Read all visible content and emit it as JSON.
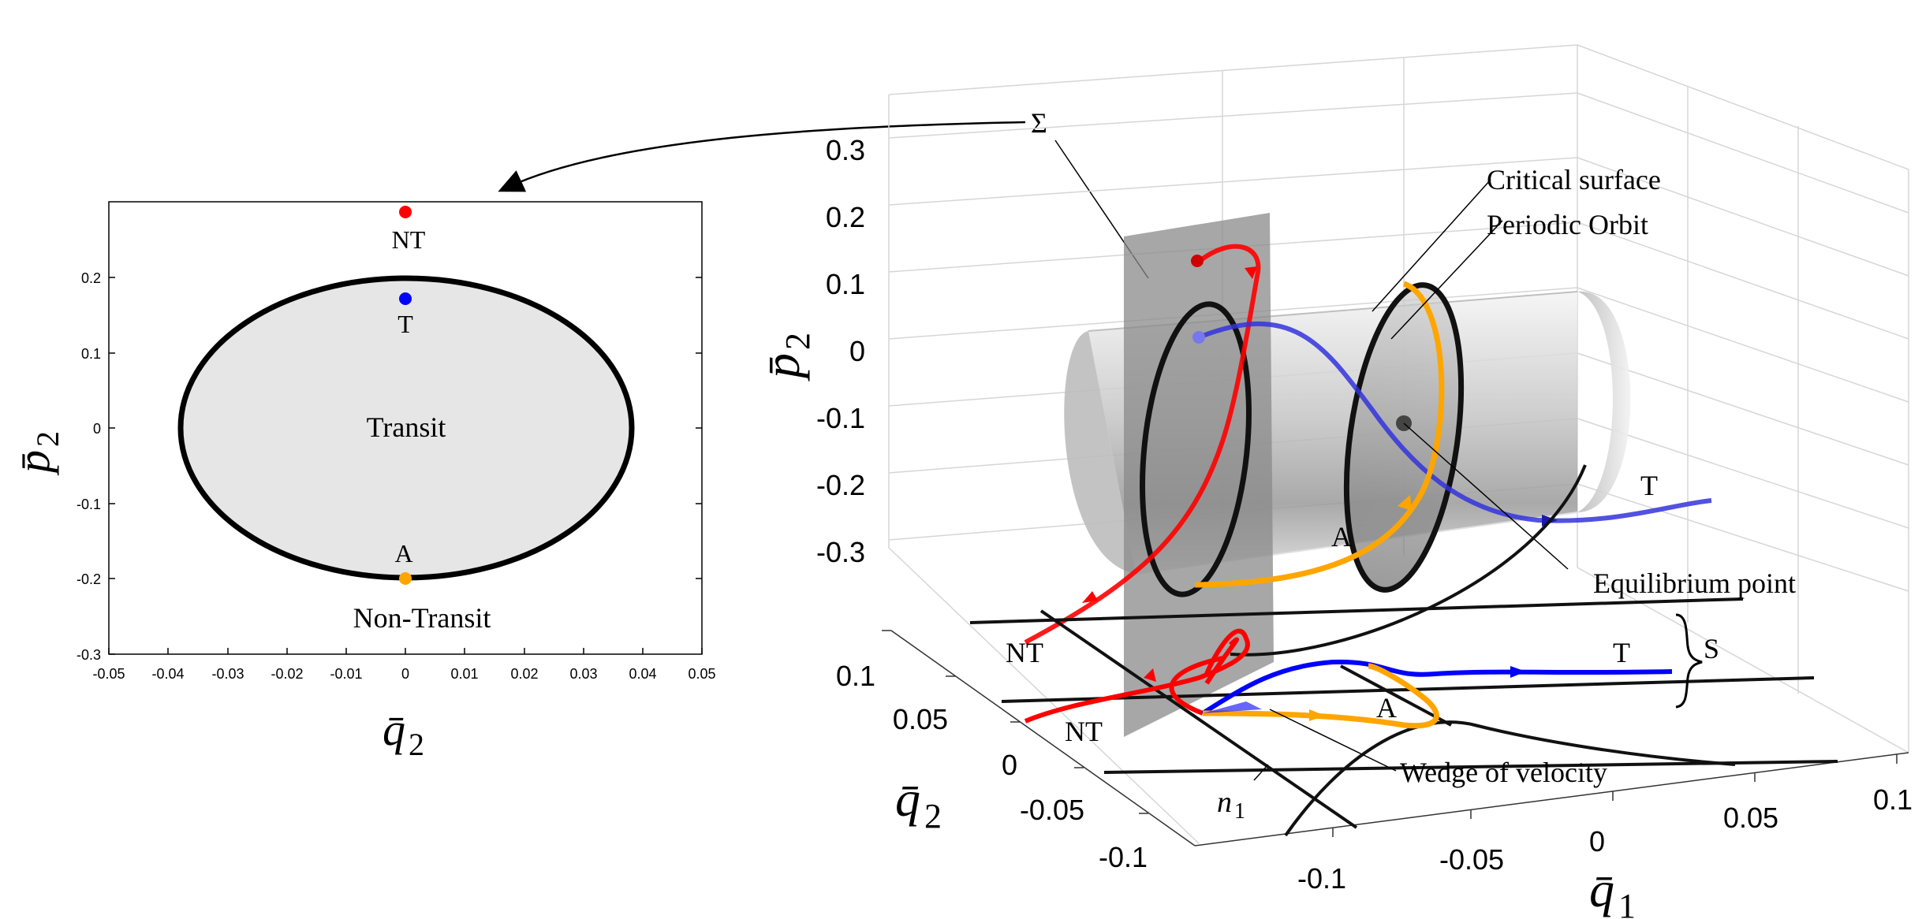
{
  "left_plot": {
    "x_ticks": [
      "-0.05",
      "-0.04",
      "-0.03",
      "-0.02",
      "-0.01",
      "0",
      "0.01",
      "0.02",
      "0.03",
      "0.05"
    ],
    "x_tick_004": "0.04",
    "y_ticks": [
      "0.2",
      "0.1",
      "0",
      "-0.1",
      "-0.2",
      "-0.3"
    ],
    "xlabel": "q̄",
    "xlabel_sub": "2",
    "ylabel": "p̄",
    "ylabel_sub": "2",
    "region_inside": "Transit",
    "region_outside": "Non-Transit",
    "point_nt": "NT",
    "point_t": "T",
    "point_a": "A",
    "colors": {
      "nt": "#ff0000",
      "t": "#0000ff",
      "a": "#ffa500",
      "fill": "#e6e6e6"
    }
  },
  "right_plot": {
    "sigma_label": "Σ",
    "p2_ticks": [
      "0.3",
      "0.2",
      "0.1",
      "0",
      "-0.1",
      "-0.2",
      "-0.3"
    ],
    "q2_ticks": [
      "0.1",
      "0.05",
      "0",
      "-0.05",
      "-0.1"
    ],
    "q1_ticks": [
      "-0.1",
      "-0.05",
      "0",
      "0.05",
      "0.1"
    ],
    "zlabel": "p̄",
    "zlabel_sub": "2",
    "ylabel": "q̄",
    "ylabel_sub": "2",
    "xlabel": "q̄",
    "xlabel_sub": "1",
    "annotations": {
      "critical_surface": "Critical surface",
      "periodic_orbit": "Periodic Orbit",
      "equilibrium_point": "Equilibrium point",
      "wedge_of_velocity": "Wedge of velocity",
      "n1": "n",
      "n1_sub": "1",
      "s_label": "S",
      "t_upper": "T",
      "a_upper": "A",
      "nt_upper": "NT",
      "t_lower": "T",
      "a_lower": "A",
      "nt_lower": "NT"
    },
    "colors": {
      "nt": "#ff0000",
      "t": "#0000ff",
      "a": "#ffa500"
    }
  }
}
